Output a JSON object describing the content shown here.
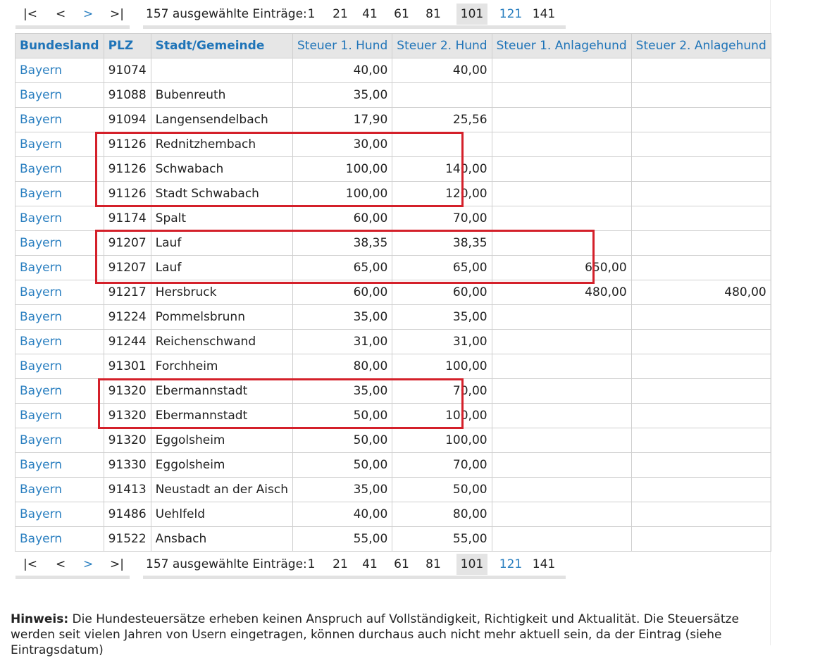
{
  "pager": {
    "first": "|<",
    "prev": "<",
    "next": ">",
    "last": ">|",
    "info": "157 ausgewählte Einträge:",
    "pages": [
      "1",
      "21",
      "41",
      "61",
      "81",
      "101",
      "121",
      "141"
    ],
    "current_page": "101"
  },
  "table": {
    "headers": [
      "Bundesland",
      "PLZ",
      "Stadt/Gemeinde",
      "Steuer 1. Hund",
      "Steuer 2. Hund",
      "Steuer 1. Anlagehund",
      "Steuer 2. Anlagehund"
    ],
    "rows": [
      [
        "Bayern",
        "91074",
        "",
        "40,00",
        "40,00",
        "",
        ""
      ],
      [
        "Bayern",
        "91088",
        "Bubenreuth",
        "35,00",
        "",
        "",
        ""
      ],
      [
        "Bayern",
        "91094",
        "Langensendelbach",
        "17,90",
        "25,56",
        "",
        ""
      ],
      [
        "Bayern",
        "91126",
        "Rednitzhembach",
        "30,00",
        "",
        "",
        ""
      ],
      [
        "Bayern",
        "91126",
        "Schwabach",
        "100,00",
        "140,00",
        "",
        ""
      ],
      [
        "Bayern",
        "91126",
        "Stadt Schwabach",
        "100,00",
        "120,00",
        "",
        ""
      ],
      [
        "Bayern",
        "91174",
        "Spalt",
        "60,00",
        "70,00",
        "",
        ""
      ],
      [
        "Bayern",
        "91207",
        "Lauf",
        "38,35",
        "38,35",
        "",
        ""
      ],
      [
        "Bayern",
        "91207",
        "Lauf",
        "65,00",
        "65,00",
        "650,00",
        ""
      ],
      [
        "Bayern",
        "91217",
        "Hersbruck",
        "60,00",
        "60,00",
        "480,00",
        "480,00"
      ],
      [
        "Bayern",
        "91224",
        "Pommelsbrunn",
        "35,00",
        "35,00",
        "",
        ""
      ],
      [
        "Bayern",
        "91244",
        "Reichenschwand",
        "31,00",
        "31,00",
        "",
        ""
      ],
      [
        "Bayern",
        "91301",
        "Forchheim",
        "80,00",
        "100,00",
        "",
        ""
      ],
      [
        "Bayern",
        "91320",
        "Ebermannstadt",
        "35,00",
        "70,00",
        "",
        ""
      ],
      [
        "Bayern",
        "91320",
        "Ebermannstadt",
        "50,00",
        "100,00",
        "",
        ""
      ],
      [
        "Bayern",
        "91320",
        "Eggolsheim",
        "50,00",
        "100,00",
        "",
        ""
      ],
      [
        "Bayern",
        "91330",
        "Eggolsheim",
        "50,00",
        "70,00",
        "",
        ""
      ],
      [
        "Bayern",
        "91413",
        "Neustadt an der Aisch",
        "35,00",
        "50,00",
        "",
        ""
      ],
      [
        "Bayern",
        "91486",
        "Uehlfeld",
        "40,00",
        "80,00",
        "",
        ""
      ],
      [
        "Bayern",
        "91522",
        "Ansbach",
        "55,00",
        "55,00",
        "",
        ""
      ]
    ]
  },
  "note": {
    "label": "Hinweis:",
    "text": "Die Hundesteuersätze erheben keinen Anspruch auf Vollständigkeit, Richtigkeit und Aktualität. Die Steuersätze werden seit vielen Jahren von Usern eingetragen, können durchaus auch nicht mehr aktuell sein, da der Eintrag (siehe Eintragsdatum)"
  },
  "colors": {
    "link": "#2a7fc0",
    "header_text": "#1f74b8",
    "highlight": "#d4202a"
  }
}
